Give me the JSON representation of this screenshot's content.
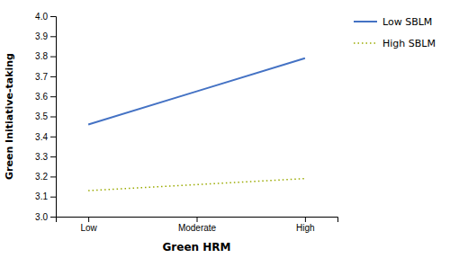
{
  "chart_data": {
    "type": "line",
    "xlabel": "Green HRM",
    "ylabel": "Green Initiative-taking",
    "categories": [
      "Low",
      "Moderate",
      "High"
    ],
    "series": [
      {
        "name": "Low SBLM",
        "color": "#4472c4",
        "line_style": "solid",
        "values": [
          3.46,
          3.625,
          3.79
        ]
      },
      {
        "name": "High SBLM",
        "color": "#9aaa00",
        "line_style": "dotted",
        "values": [
          3.13,
          3.16,
          3.19
        ]
      }
    ],
    "ylim": [
      3.0,
      4.0
    ],
    "yticks": [
      {
        "value": 3.0,
        "label": "3.0"
      },
      3.1,
      3.2,
      3.3,
      3.4,
      3.5,
      3.6,
      3.7,
      3.8,
      3.9,
      {
        "value": 4.0,
        "label": "4.0"
      }
    ],
    "grid": false,
    "legend": "right"
  }
}
